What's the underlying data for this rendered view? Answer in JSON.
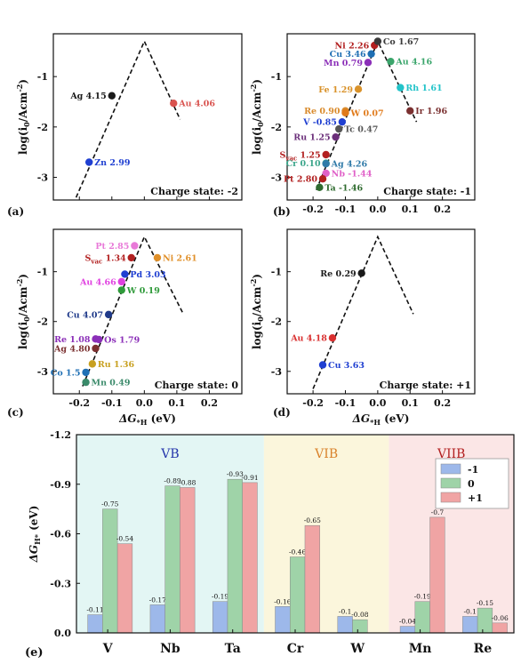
{
  "chart_data": [
    {
      "type": "scatter",
      "panel": "(a)",
      "charge_state": "Charge state: -2",
      "xlabel_parts": {
        "prefix": "ΔG",
        "sub": "*H",
        "suffix": " (eV)"
      },
      "ylabel_parts": {
        "prefix": "log(i",
        "sub": "0",
        "mid": "/Acm",
        "sup": "-2",
        "suffix": ")"
      },
      "xlim": [
        -0.28,
        0.3
      ],
      "ylim": [
        -3.45,
        -0.15
      ],
      "xticks": [
        -0.2,
        -0.1,
        0.0,
        0.1,
        0.2
      ],
      "xtick_labels": [
        "-0.2",
        "-0.1",
        "0.0",
        "0.1",
        "0.2"
      ],
      "yticks": [
        -1,
        -2,
        -3
      ],
      "ytick_labels": [
        "-1",
        "-2",
        "-3"
      ],
      "show_xtick_labels": false,
      "show_ylabel": true,
      "show_xlabel": false,
      "volcano": {
        "left_from": [
          -0.21,
          -3.4
        ],
        "peak": [
          0.0,
          -0.3
        ],
        "right_to": [
          0.11,
          -1.85
        ]
      },
      "points": [
        {
          "label": "Ag 4.15",
          "name": "Ag",
          "value": "4.15",
          "x": -0.1,
          "y": -1.38,
          "color": "#1a1a1a",
          "label_pos": "left"
        },
        {
          "label": "Au 4.06",
          "name": "Au",
          "value": "4.06",
          "x": 0.09,
          "y": -1.53,
          "color": "#d9534f",
          "label_pos": "right"
        },
        {
          "label": "Zn 2.99",
          "name": "Zn",
          "value": "2.99",
          "x": -0.17,
          "y": -2.7,
          "color": "#1f3fd1",
          "label_pos": "right"
        }
      ]
    },
    {
      "type": "scatter",
      "panel": "(b)",
      "charge_state": "Charge state: -1",
      "xlabel_parts": {
        "prefix": "ΔG",
        "sub": "*H",
        "suffix": " (eV)"
      },
      "ylabel_parts": {
        "prefix": "log(i",
        "sub": "0",
        "mid": "/Acm",
        "sup": "-2",
        "suffix": ")"
      },
      "xlim": [
        -0.28,
        0.3
      ],
      "ylim": [
        -3.45,
        -0.15
      ],
      "xticks": [
        -0.2,
        -0.1,
        0.0,
        0.1,
        0.2
      ],
      "xtick_labels": [
        "-0.2",
        "-0.1",
        "0.0",
        "0.1",
        "0.2"
      ],
      "yticks": [
        -1,
        -2,
        -3
      ],
      "ytick_labels": [
        "-1",
        "-2",
        "-3"
      ],
      "show_xtick_labels": true,
      "show_ylabel": true,
      "show_xlabel": false,
      "volcano": {
        "left_from": [
          -0.19,
          -3.25
        ],
        "peak": [
          0.0,
          -0.3
        ],
        "right_to": [
          0.12,
          -1.9
        ]
      },
      "points": [
        {
          "label": "Ni 2.26",
          "name": "Ni",
          "value": "2.26",
          "x": -0.01,
          "y": -0.38,
          "color": "#b22020",
          "label_pos": "left"
        },
        {
          "label": "Co 1.67",
          "name": "Co",
          "value": "1.67",
          "x": 0.0,
          "y": -0.3,
          "color": "#3a3a3a",
          "label_pos": "right"
        },
        {
          "label": "Cu 3.46",
          "name": "Cu",
          "value": "3.46",
          "x": -0.02,
          "y": -0.55,
          "color": "#1f6fb4",
          "label_pos": "left"
        },
        {
          "label": "Mn 0.79",
          "name": "Mn",
          "value": "0.79",
          "x": -0.03,
          "y": -0.72,
          "color": "#8b2fb8",
          "label_pos": "left"
        },
        {
          "label": "Au 4.16",
          "name": "Au",
          "value": "4.16",
          "x": 0.04,
          "y": -0.7,
          "color": "#3aa56b",
          "label_pos": "right"
        },
        {
          "label": "Fe 1.29",
          "name": "Fe",
          "value": "1.29",
          "x": -0.06,
          "y": -1.25,
          "color": "#d9922a",
          "label_pos": "left"
        },
        {
          "label": "Rh 1.61",
          "name": "Rh",
          "value": "1.61",
          "x": 0.07,
          "y": -1.22,
          "color": "#22c3c9",
          "label_pos": "right"
        },
        {
          "label": "Re 0.90",
          "name": "Re",
          "value": "0.90",
          "x": -0.1,
          "y": -1.68,
          "color": "#d98a2a",
          "label_pos": "left"
        },
        {
          "label": "W 0.07",
          "name": "W",
          "value": "0.07",
          "x": -0.1,
          "y": -1.72,
          "color": "#e07a1a",
          "label_pos": "right"
        },
        {
          "label": "Ir 1.96",
          "name": "Ir",
          "value": "1.96",
          "x": 0.1,
          "y": -1.68,
          "color": "#7a3030",
          "label_pos": "right"
        },
        {
          "label": "V -0.85",
          "name": "V",
          "value": "-0.85",
          "x": -0.11,
          "y": -1.9,
          "color": "#1f3fd1",
          "label_pos": "left"
        },
        {
          "label": "Tc 0.47",
          "name": "Tc",
          "value": "0.47",
          "x": -0.12,
          "y": -2.04,
          "color": "#555555",
          "label_pos": "right"
        },
        {
          "label": "Ru 1.25",
          "name": "Ru",
          "value": "1.25",
          "x": -0.13,
          "y": -2.2,
          "color": "#6b2f7a",
          "label_pos": "left"
        },
        {
          "label": "S 1.25",
          "name": "S",
          "name_sub": "vac",
          "value": "1.25",
          "x": -0.16,
          "y": -2.55,
          "color": "#b22020",
          "label_pos": "left"
        },
        {
          "label": "Cr 0.10",
          "name": "Cr",
          "value": "0.10",
          "x": -0.16,
          "y": -2.72,
          "color": "#3aa58a",
          "label_pos": "left"
        },
        {
          "label": "Ag 4.26",
          "name": "Ag",
          "value": "4.26",
          "x": -0.16,
          "y": -2.73,
          "color": "#2f7aa8",
          "label_pos": "right"
        },
        {
          "label": "Nb -1.44",
          "name": "Nb",
          "value": "-1.44",
          "x": -0.16,
          "y": -2.92,
          "color": "#e060c8",
          "label_pos": "right"
        },
        {
          "label": "Pt 2.80",
          "name": "Pt",
          "value": "2.80",
          "x": -0.17,
          "y": -3.03,
          "color": "#b22020",
          "label_pos": "left"
        },
        {
          "label": "Ta -1.46",
          "name": "Ta",
          "value": "-1.46",
          "x": -0.18,
          "y": -3.2,
          "color": "#2f6b2f",
          "label_pos": "right"
        }
      ]
    },
    {
      "type": "scatter",
      "panel": "(c)",
      "charge_state": "Charge state: 0",
      "xlabel_parts": {
        "prefix": "ΔG",
        "sub": "*H",
        "suffix": " (eV)"
      },
      "ylabel_parts": {
        "prefix": "log(i",
        "sub": "0",
        "mid": "/Acm",
        "sup": "-2",
        "suffix": ")"
      },
      "xlim": [
        -0.28,
        0.3
      ],
      "ylim": [
        -3.45,
        -0.15
      ],
      "xticks": [
        -0.2,
        -0.1,
        0.0,
        0.1,
        0.2
      ],
      "xtick_labels": [
        "-0.2",
        "-0.1",
        "0.0",
        "0.1",
        "0.2"
      ],
      "yticks": [
        -1,
        -2,
        -3
      ],
      "ytick_labels": [
        "-1",
        "-2",
        "-3"
      ],
      "show_xtick_labels": true,
      "show_ylabel": true,
      "show_xlabel": true,
      "volcano": {
        "left_from": [
          -0.19,
          -3.3
        ],
        "peak": [
          0.0,
          -0.3
        ],
        "right_to": [
          0.12,
          -1.85
        ]
      },
      "points": [
        {
          "label": "Pt 2.85",
          "name": "Pt",
          "value": "2.85",
          "x": -0.03,
          "y": -0.48,
          "color": "#e87ad8",
          "label_pos": "left"
        },
        {
          "label": "S 1.34",
          "name": "S",
          "name_sub": "vac",
          "value": "1.34",
          "x": -0.04,
          "y": -0.72,
          "color": "#b22020",
          "label_pos": "left"
        },
        {
          "label": "Ni 2.61",
          "name": "Ni",
          "value": "2.61",
          "x": 0.04,
          "y": -0.72,
          "color": "#e0902a",
          "label_pos": "right"
        },
        {
          "label": "Pd 3.03",
          "name": "Pd",
          "value": "3.03",
          "x": -0.06,
          "y": -1.05,
          "color": "#1f3fd1",
          "label_pos": "right"
        },
        {
          "label": "Au 4.66",
          "name": "Au",
          "value": "4.66",
          "x": -0.07,
          "y": -1.2,
          "color": "#e040e0",
          "label_pos": "left"
        },
        {
          "label": "W 0.19",
          "name": "W",
          "value": "0.19",
          "x": -0.07,
          "y": -1.37,
          "color": "#2f9a3a",
          "label_pos": "right"
        },
        {
          "label": "Cu 4.07",
          "name": "Cu",
          "value": "4.07",
          "x": -0.11,
          "y": -1.86,
          "color": "#1f3a8a",
          "label_pos": "left"
        },
        {
          "label": "Re 1.08",
          "name": "Re",
          "value": "1.08",
          "x": -0.15,
          "y": -2.35,
          "color": "#8b2fb8",
          "label_pos": "left"
        },
        {
          "label": "Os 1.79",
          "name": "Os",
          "value": "1.79",
          "x": -0.14,
          "y": -2.36,
          "color": "#8b2fb8",
          "label_pos": "right"
        },
        {
          "label": "Ag 4.80",
          "name": "Ag",
          "value": "4.80",
          "x": -0.15,
          "y": -2.54,
          "color": "#7a3030",
          "label_pos": "left"
        },
        {
          "label": "Ru 1.36",
          "name": "Ru",
          "value": "1.36",
          "x": -0.16,
          "y": -2.85,
          "color": "#c8a020",
          "label_pos": "right"
        },
        {
          "label": "Co 1.5",
          "name": "Co",
          "value": "1.5",
          "x": -0.18,
          "y": -3.02,
          "color": "#1f6fb4",
          "label_pos": "left"
        },
        {
          "label": "Mn 0.49",
          "name": "Mn",
          "value": "0.49",
          "x": -0.18,
          "y": -3.22,
          "color": "#3a8a6a",
          "label_pos": "right"
        }
      ]
    },
    {
      "type": "scatter",
      "panel": "(d)",
      "charge_state": "Charge state: +1",
      "xlabel_parts": {
        "prefix": "ΔG",
        "sub": "*H",
        "suffix": " (eV)"
      },
      "ylabel_parts": {
        "prefix": "log(i",
        "sub": "0",
        "mid": "/Acm",
        "sup": "-2",
        "suffix": ")"
      },
      "xlim": [
        -0.28,
        0.3
      ],
      "ylim": [
        -3.45,
        -0.15
      ],
      "xticks": [
        -0.2,
        -0.1,
        0.0,
        0.1,
        0.2
      ],
      "xtick_labels": [
        "-0.2",
        "-0.1",
        "0.0",
        "0.1",
        "0.2"
      ],
      "yticks": [
        -1,
        -2,
        -3
      ],
      "ytick_labels": [
        "-1",
        "-2",
        "-3"
      ],
      "show_xtick_labels": true,
      "show_ylabel": true,
      "show_xlabel": true,
      "volcano": {
        "left_from": [
          -0.2,
          -3.35
        ],
        "peak": [
          0.0,
          -0.3
        ],
        "right_to": [
          0.11,
          -1.85
        ]
      },
      "points": [
        {
          "label": "Re 0.29",
          "name": "Re",
          "value": "0.29",
          "x": -0.05,
          "y": -1.03,
          "color": "#1a1a1a",
          "label_pos": "left"
        },
        {
          "label": "Au 4.18",
          "name": "Au",
          "value": "4.18",
          "x": -0.14,
          "y": -2.33,
          "color": "#d93030",
          "label_pos": "left"
        },
        {
          "label": "Cu 3.63",
          "name": "Cu",
          "value": "3.63",
          "x": -0.17,
          "y": -2.87,
          "color": "#1f3fd1",
          "label_pos": "right"
        }
      ]
    },
    {
      "type": "bar",
      "panel": "(e)",
      "ylabel_parts": {
        "prefix": "ΔG",
        "sub": "H*",
        "suffix": " (eV)"
      },
      "categories": [
        "V",
        "Nb",
        "Ta",
        "Cr",
        "W",
        "Mn",
        "Re"
      ],
      "ylim": [
        0,
        -1.2
      ],
      "yticks": [
        0.0,
        -0.3,
        -0.6,
        -0.9,
        -1.2
      ],
      "ytick_labels": [
        "0.0",
        "-0.3",
        "-0.6",
        "-0.9",
        "-1.2"
      ],
      "groups": [
        {
          "label": "VB",
          "from": 0,
          "to": 2,
          "bg": "#e3f6f4",
          "color": "#2233aa"
        },
        {
          "label": "VIB",
          "from": 3,
          "to": 4,
          "bg": "#fbf6dc",
          "color": "#d9822b"
        },
        {
          "label": "VIIB",
          "from": 5,
          "to": 6,
          "bg": "#fbe6e6",
          "color": "#b22020"
        }
      ],
      "legend_position": "top-right",
      "series": [
        {
          "name": "-1",
          "color": "#9db8ea",
          "values": [
            -0.11,
            -0.17,
            -0.19,
            -0.16,
            -0.1,
            -0.04,
            -0.1
          ],
          "value_labels": [
            "-0.11",
            "-0.17",
            "-0.19",
            "-0.16",
            "-0.1",
            "-0.04",
            "-0.1"
          ]
        },
        {
          "name": "0",
          "color": "#9fd3a8",
          "values": [
            -0.75,
            -0.89,
            -0.93,
            -0.46,
            -0.08,
            -0.19,
            -0.15
          ],
          "value_labels": [
            "-0.75",
            "-0.89",
            "-0.93",
            "-0.46",
            "-0.08",
            "-0.19",
            "-0.15"
          ]
        },
        {
          "name": "+1",
          "color": "#f0a4a4",
          "values": [
            -0.54,
            -0.88,
            -0.91,
            -0.65,
            0.0,
            -0.7,
            -0.06
          ],
          "value_labels": [
            "-0.54",
            "-0.88",
            "-0.91",
            "-0.65",
            "",
            "-0.7",
            "-0.06"
          ]
        }
      ]
    }
  ]
}
